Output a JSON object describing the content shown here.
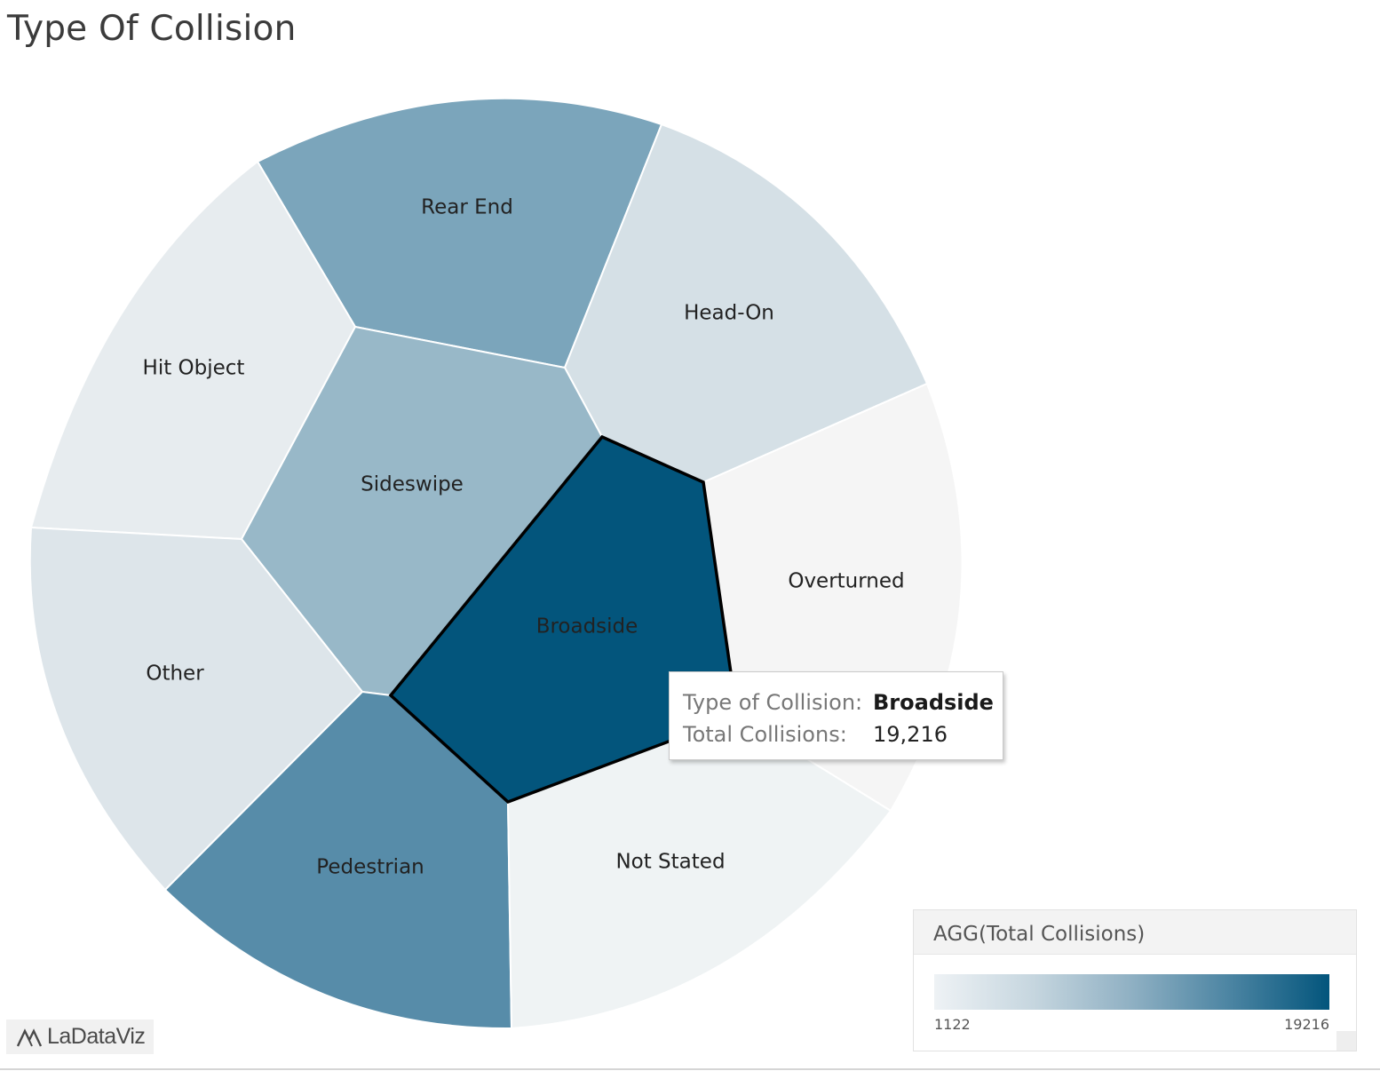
{
  "title": "Type Of Collision",
  "chart_data": {
    "type": "voronoi-treemap",
    "measure": "Total Collisions",
    "cells": [
      {
        "name": "Broadside",
        "value": 19216,
        "color": "#03557c",
        "selected": true
      },
      {
        "name": "Rear End",
        "value": null,
        "color": "#7ba5bb"
      },
      {
        "name": "Head-On",
        "value": null,
        "color": "#d5e0e6"
      },
      {
        "name": "Hit Object",
        "value": null,
        "color": "#e7ecef"
      },
      {
        "name": "Sideswipe",
        "value": null,
        "color": "#98b8c8"
      },
      {
        "name": "Overturned",
        "value": null,
        "color": "#f5f5f5"
      },
      {
        "name": "Other",
        "value": null,
        "color": "#dde5ea"
      },
      {
        "name": "Pedestrian",
        "value": null,
        "color": "#578ca9"
      },
      {
        "name": "Not Stated",
        "value": null,
        "color": "#eff3f4"
      }
    ],
    "color_scale": {
      "min": 1122,
      "max": 19216,
      "low_color": "#eef2f5",
      "high_color": "#03557c"
    }
  },
  "tooltip": {
    "key1": "Type of Collision:",
    "val1": "Broadside",
    "key2": "Total Collisions:",
    "val2": "19,216"
  },
  "legend": {
    "title": "AGG(Total Collisions)",
    "min_label": "1122",
    "max_label": "19216"
  },
  "brand": {
    "name": "LaDataViz"
  }
}
